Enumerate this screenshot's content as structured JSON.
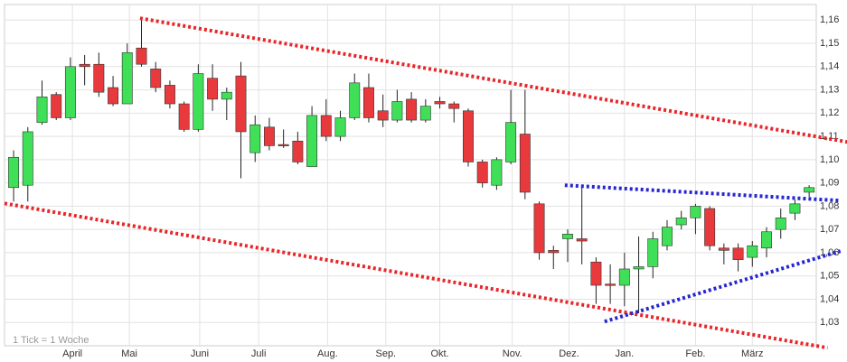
{
  "chart_data": {
    "type": "candlestick",
    "note": "1 Tick = 1 Woche",
    "categories": [
      null,
      null,
      null,
      null,
      null,
      null,
      null,
      null,
      null,
      null,
      null,
      null,
      null,
      null,
      null,
      null,
      null,
      null,
      null,
      null,
      null,
      null,
      null,
      null,
      null,
      null,
      null,
      null,
      null,
      null,
      null,
      null,
      null,
      null,
      null,
      null,
      null,
      null,
      null,
      null,
      null,
      null,
      null,
      null,
      null,
      null,
      null,
      null,
      null,
      null,
      null,
      null,
      null,
      null,
      null,
      null,
      null
    ],
    "open": [
      1.088,
      1.089,
      1.116,
      1.128,
      1.118,
      1.141,
      1.141,
      1.131,
      1.124,
      1.148,
      1.139,
      1.132,
      1.124,
      1.113,
      1.135,
      1.126,
      1.136,
      1.103,
      1.114,
      1.1065,
      1.108,
      1.097,
      1.119,
      1.11,
      1.118,
      1.131,
      1.121,
      1.117,
      1.126,
      1.117,
      1.125,
      1.124,
      1.121,
      1.099,
      1.089,
      1.099,
      1.111,
      1.081,
      1.061,
      1.066,
      1.066,
      1.056,
      1.0465,
      1.046,
      1.053,
      1.054,
      1.063,
      1.072,
      1.075,
      1.079,
      1.062,
      1.062,
      1.058,
      1.062,
      1.07,
      1.077,
      1.086
    ],
    "high": [
      1.104,
      1.114,
      1.134,
      1.129,
      1.144,
      1.145,
      1.146,
      1.136,
      1.15,
      1.161,
      1.142,
      1.134,
      1.125,
      1.141,
      1.141,
      1.131,
      1.142,
      1.119,
      1.118,
      1.113,
      1.112,
      1.123,
      1.126,
      1.121,
      1.137,
      1.137,
      1.128,
      1.13,
      1.129,
      1.126,
      1.127,
      1.125,
      1.122,
      1.1,
      1.101,
      1.13,
      1.13,
      1.082,
      1.063,
      1.07,
      1.088,
      1.058,
      1.055,
      1.06,
      1.067,
      1.069,
      1.074,
      1.078,
      1.081,
      1.08,
      1.064,
      1.064,
      1.065,
      1.071,
      1.079,
      1.083,
      1.089
    ],
    "low": [
      1.082,
      1.082,
      1.115,
      1.117,
      1.117,
      1.132,
      1.127,
      1.123,
      1.124,
      1.14,
      1.129,
      1.122,
      1.112,
      1.112,
      1.121,
      1.117,
      1.092,
      1.099,
      1.104,
      1.105,
      1.098,
      1.097,
      1.108,
      1.108,
      1.117,
      1.116,
      1.114,
      1.116,
      1.116,
      1.116,
      1.122,
      1.116,
      1.097,
      1.088,
      1.087,
      1.098,
      1.083,
      1.057,
      1.053,
      1.056,
      1.055,
      1.038,
      1.038,
      1.037,
      1.034,
      1.049,
      1.061,
      1.07,
      1.068,
      1.061,
      1.055,
      1.052,
      1.054,
      1.058,
      1.066,
      1.074,
      1.084
    ],
    "close": [
      1.101,
      1.112,
      1.127,
      1.118,
      1.14,
      1.14,
      1.129,
      1.124,
      1.146,
      1.141,
      1.131,
      1.124,
      1.113,
      1.137,
      1.126,
      1.129,
      1.112,
      1.115,
      1.106,
      1.106,
      1.099,
      1.119,
      1.11,
      1.118,
      1.133,
      1.118,
      1.117,
      1.125,
      1.117,
      1.123,
      1.124,
      1.122,
      1.099,
      1.09,
      1.1,
      1.116,
      1.086,
      1.06,
      1.06,
      1.068,
      1.065,
      1.046,
      1.046,
      1.053,
      1.054,
      1.066,
      1.071,
      1.075,
      1.08,
      1.063,
      1.061,
      1.057,
      1.063,
      1.069,
      1.075,
      1.081,
      1.088
    ],
    "up_color": "#3fe058",
    "down_color": "#e8393c",
    "xlim": [
      -0.64,
      56.5
    ],
    "ylim": [
      1.02,
      1.1667
    ],
    "xticks": [
      {
        "value": 4.14,
        "label": "April"
      },
      {
        "value": 8.15,
        "label": "Mai"
      },
      {
        "value": 13.1,
        "label": "Juni"
      },
      {
        "value": 17.25,
        "label": "Juli"
      },
      {
        "value": 22.1,
        "label": "Aug."
      },
      {
        "value": 26.2,
        "label": "Sep."
      },
      {
        "value": 30.0,
        "label": "Okt."
      },
      {
        "value": 35.1,
        "label": "Nov."
      },
      {
        "value": 39.1,
        "label": "Dez."
      },
      {
        "value": 43.0,
        "label": "Jan."
      },
      {
        "value": 48.0,
        "label": "Feb."
      },
      {
        "value": 52.0,
        "label": "März"
      }
    ],
    "yticks": [
      {
        "value": 1.03,
        "label": "1,03"
      },
      {
        "value": 1.04,
        "label": "1,04"
      },
      {
        "value": 1.05,
        "label": "1,05"
      },
      {
        "value": 1.06,
        "label": "1,06"
      },
      {
        "value": 1.07,
        "label": "1,07"
      },
      {
        "value": 1.08,
        "label": "1,08"
      },
      {
        "value": 1.09,
        "label": "1,09"
      },
      {
        "value": 1.1,
        "label": "1,10"
      },
      {
        "value": 1.11,
        "label": "1,11"
      },
      {
        "value": 1.12,
        "label": "1,12"
      },
      {
        "value": 1.13,
        "label": "1,13"
      },
      {
        "value": 1.14,
        "label": "1,14"
      },
      {
        "value": 1.15,
        "label": "1,15"
      },
      {
        "value": 1.16,
        "label": "1,16"
      }
    ],
    "grid": true,
    "trend_lines": [
      {
        "color": "#e8262a",
        "x": [
          8.9,
          58.7
        ],
        "y": [
          1.1608,
          1.1076
        ]
      },
      {
        "color": "#e8262a",
        "x": [
          -0.64,
          57.3
        ],
        "y": [
          1.0812,
          1.0191
        ]
      },
      {
        "color": "#2626d0",
        "x": [
          38.8,
          58.2
        ],
        "y": [
          1.089,
          1.0824
        ]
      },
      {
        "color": "#2626d0",
        "x": [
          41.6,
          58.2
        ],
        "y": [
          1.0304,
          1.0607
        ]
      }
    ]
  }
}
